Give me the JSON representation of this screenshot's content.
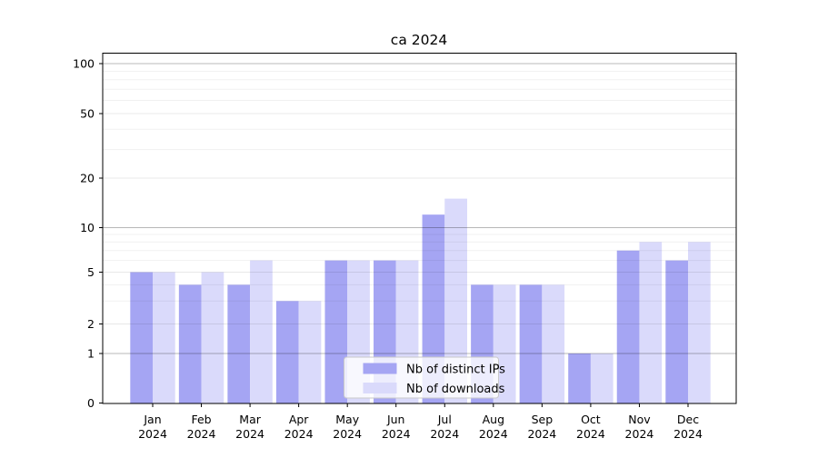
{
  "chart_data": {
    "type": "bar",
    "title": "ca 2024",
    "categories": [
      {
        "month": "Jan",
        "year": "2024"
      },
      {
        "month": "Feb",
        "year": "2024"
      },
      {
        "month": "Mar",
        "year": "2024"
      },
      {
        "month": "Apr",
        "year": "2024"
      },
      {
        "month": "May",
        "year": "2024"
      },
      {
        "month": "Jun",
        "year": "2024"
      },
      {
        "month": "Jul",
        "year": "2024"
      },
      {
        "month": "Aug",
        "year": "2024"
      },
      {
        "month": "Sep",
        "year": "2024"
      },
      {
        "month": "Oct",
        "year": "2024"
      },
      {
        "month": "Nov",
        "year": "2024"
      },
      {
        "month": "Dec",
        "year": "2024"
      }
    ],
    "series": [
      {
        "name": "Nb of distinct IPs",
        "color": "#a5a5f3",
        "values": [
          5,
          4,
          4,
          3,
          6,
          6,
          12,
          4,
          4,
          1,
          7,
          6
        ]
      },
      {
        "name": "Nb of downloads",
        "color": "#dadafb",
        "values": [
          5,
          5,
          6,
          3,
          6,
          6,
          15,
          4,
          4,
          1,
          8,
          8
        ]
      }
    ],
    "xlabel": "",
    "ylabel": "",
    "scale": "symlog",
    "ylim": [
      0,
      115
    ],
    "yticks": [
      0,
      1,
      2,
      5,
      10,
      20,
      50,
      100
    ],
    "minor_ticks": [
      3,
      4,
      6,
      7,
      8,
      9,
      30,
      40,
      60,
      70,
      80,
      90
    ],
    "grid": true,
    "legend_position": "lower center",
    "axis_color": "#000000",
    "grid_minor_color": "rgba(0,0,0,0.06)",
    "grid_sub_major_color": "rgba(0,0,0,0.09)",
    "grid_decade_color": "rgba(0,0,0,0.28)"
  }
}
